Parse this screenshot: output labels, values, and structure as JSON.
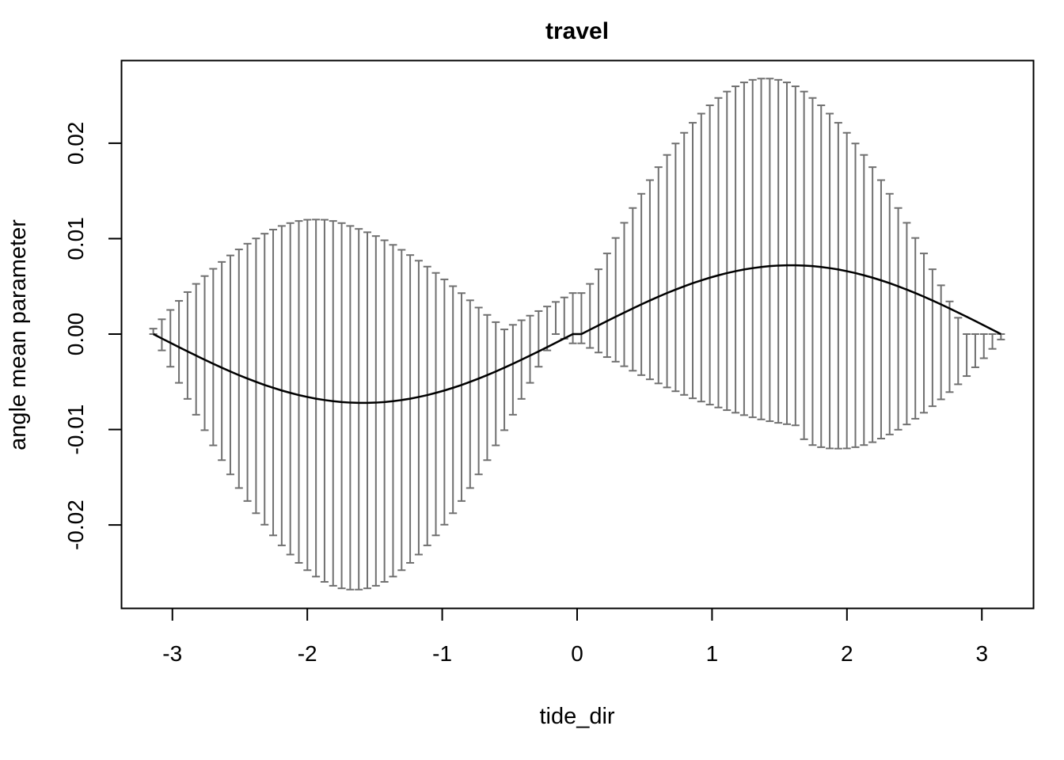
{
  "chart_data": {
    "type": "line",
    "title": "travel",
    "xlabel": "tide_dir",
    "ylabel": "angle mean parameter",
    "xlim": [
      -3.38,
      3.38
    ],
    "ylim": [
      -0.0287,
      0.0287
    ],
    "x_ticks": [
      -3,
      -2,
      -1,
      0,
      1,
      2,
      3
    ],
    "x_tick_labels": [
      "-3",
      "-2",
      "-1",
      "0",
      "1",
      "2",
      "3"
    ],
    "y_ticks": [
      -0.02,
      -0.01,
      0.0,
      0.01,
      0.02
    ],
    "y_tick_labels": [
      "-0.02",
      "-0.01",
      "0.00",
      "0.01",
      "0.02"
    ],
    "grid": false,
    "colors": {
      "line": "#000000",
      "errorbar": "#707070",
      "axes": "#000000"
    },
    "series": [
      {
        "x": [
          -3.1416,
          -3.0782,
          -3.0147,
          -2.9512,
          -2.8877,
          -2.8243,
          -2.7608,
          -2.6973,
          -2.6339,
          -2.5704,
          -2.5069,
          -2.4435,
          -2.38,
          -2.3165,
          -2.2531,
          -2.1896,
          -2.1261,
          -2.0627,
          -1.9992,
          -1.9357,
          -1.8723,
          -1.8088,
          -1.7453,
          -1.6819,
          -1.6184,
          -1.5549,
          -1.4915,
          -1.428,
          -1.3645,
          -1.301,
          -1.2376,
          -1.1741,
          -1.1106,
          -1.0472,
          -0.9837,
          -0.9202,
          -0.8568,
          -0.7933,
          -0.7298,
          -0.6664,
          -0.6029,
          -0.5394,
          -0.476,
          -0.4125,
          -0.349,
          -0.2856,
          -0.2221,
          -0.1586,
          -0.0952,
          -0.0317,
          0.0317,
          0.0952,
          0.1586,
          0.2221,
          0.2856,
          0.349,
          0.4125,
          0.476,
          0.5394,
          0.6029,
          0.6664,
          0.7298,
          0.7933,
          0.8568,
          0.9202,
          0.9837,
          1.0472,
          1.1106,
          1.1741,
          1.2376,
          1.301,
          1.3645,
          1.428,
          1.4915,
          1.5549,
          1.6184,
          1.6819,
          1.7453,
          1.8088,
          1.8723,
          1.9357,
          1.9992,
          2.0627,
          2.1261,
          2.1896,
          2.2531,
          2.3165,
          2.38,
          2.4435,
          2.5069,
          2.5704,
          2.6339,
          2.6973,
          2.7608,
          2.8243,
          2.8877,
          2.9512,
          3.0147,
          3.0782,
          3.1416
        ],
        "y": [
          0.0,
          -0.00046,
          -0.00091,
          -0.00137,
          -0.00181,
          -0.00225,
          -0.00269,
          -0.00311,
          -0.00352,
          -0.00392,
          -0.0043,
          -0.00466,
          -0.005,
          -0.00533,
          -0.00563,
          -0.00591,
          -0.00616,
          -0.00639,
          -0.00659,
          -0.00677,
          -0.00691,
          -0.00703,
          -0.00712,
          -0.00718,
          -0.00721,
          -0.00721,
          -0.00718,
          -0.00712,
          -0.00703,
          -0.00691,
          -0.00677,
          -0.00659,
          -0.00639,
          -0.00616,
          -0.00591,
          -0.00563,
          -0.00533,
          -0.005,
          -0.00466,
          -0.0043,
          -0.00392,
          -0.00352,
          -0.00311,
          -0.00269,
          -0.00225,
          -0.00181,
          -0.00137,
          -0.00091,
          -0.00046,
          0.0,
          0.0,
          0.00046,
          0.00091,
          0.00137,
          0.00181,
          0.00225,
          0.00269,
          0.00311,
          0.00352,
          0.00392,
          0.0043,
          0.00466,
          0.005,
          0.00533,
          0.00563,
          0.00591,
          0.00616,
          0.00639,
          0.00659,
          0.00677,
          0.00691,
          0.00703,
          0.00712,
          0.00718,
          0.00721,
          0.00721,
          0.00718,
          0.00712,
          0.00703,
          0.00691,
          0.00677,
          0.00659,
          0.00639,
          0.00616,
          0.00591,
          0.00563,
          0.00533,
          0.005,
          0.00466,
          0.0043,
          0.00392,
          0.00352,
          0.00311,
          0.00269,
          0.00225,
          0.00181,
          0.00137,
          0.00091,
          0.00046,
          0.0
        ],
        "lower": [
          0.0,
          -0.00171,
          -0.00342,
          -0.00511,
          -0.00679,
          -0.00845,
          -0.01007,
          -0.01166,
          -0.01321,
          -0.0147,
          -0.01613,
          -0.01749,
          -0.01877,
          -0.01997,
          -0.02109,
          -0.02214,
          -0.0231,
          -0.02397,
          -0.02474,
          -0.02541,
          -0.02596,
          -0.02637,
          -0.02664,
          -0.02677,
          -0.02677,
          -0.02664,
          -0.02637,
          -0.02596,
          -0.02541,
          -0.02474,
          -0.02397,
          -0.0231,
          -0.02214,
          -0.02109,
          -0.01997,
          -0.01877,
          -0.01749,
          -0.01613,
          -0.0147,
          -0.01321,
          -0.01166,
          -0.01007,
          -0.00845,
          -0.00679,
          -0.00511,
          -0.00342,
          -0.00171,
          0.0,
          -0.00049,
          -0.00097,
          -0.00097,
          -0.00145,
          -0.00193,
          -0.00241,
          -0.00289,
          -0.00337,
          -0.00384,
          -0.0043,
          -0.00474,
          -0.00517,
          -0.00559,
          -0.00599,
          -0.00637,
          -0.00673,
          -0.00707,
          -0.00739,
          -0.00769,
          -0.00797,
          -0.00824,
          -0.00849,
          -0.00872,
          -0.00894,
          -0.00913,
          -0.0093,
          -0.00944,
          -0.00956,
          -0.01102,
          -0.01163,
          -0.01185,
          -0.01198,
          -0.012,
          -0.01198,
          -0.01185,
          -0.01163,
          -0.01133,
          -0.01095,
          -0.01052,
          -0.01002,
          -0.00947,
          -0.00887,
          -0.00824,
          -0.00756,
          -0.00684,
          -0.00608,
          -0.00526,
          -0.0044,
          -0.00348,
          -0.00253,
          -0.00155,
          -0.00057
        ],
        "upper": [
          0.00057,
          0.00155,
          0.00253,
          0.00348,
          0.0044,
          0.00526,
          0.00608,
          0.00684,
          0.00756,
          0.00824,
          0.00887,
          0.00947,
          0.01002,
          0.01052,
          0.01095,
          0.01133,
          0.01163,
          0.01185,
          0.01198,
          0.012,
          0.01198,
          0.01185,
          0.01163,
          0.01133,
          0.01102,
          0.01067,
          0.01027,
          0.00983,
          0.00935,
          0.00883,
          0.00828,
          0.00769,
          0.00707,
          0.00641,
          0.00573,
          0.00502,
          0.00429,
          0.00354,
          0.00278,
          0.00201,
          0.00125,
          0.00049,
          0.00097,
          0.00145,
          0.00193,
          0.00241,
          0.00289,
          0.00337,
          0.00384,
          0.0043,
          0.0043,
          0.00526,
          0.00679,
          0.00845,
          0.01007,
          0.01166,
          0.01321,
          0.0147,
          0.01613,
          0.01749,
          0.01877,
          0.01997,
          0.02109,
          0.02214,
          0.0231,
          0.02397,
          0.02474,
          0.02541,
          0.02596,
          0.02637,
          0.02664,
          0.02677,
          0.02677,
          0.02664,
          0.02637,
          0.02596,
          0.02541,
          0.02474,
          0.02397,
          0.0231,
          0.02214,
          0.02109,
          0.01997,
          0.01877,
          0.01749,
          0.01613,
          0.0147,
          0.01321,
          0.01166,
          0.01007,
          0.00845,
          0.00679,
          0.00511,
          0.00342,
          0.00171,
          0.0,
          0.0,
          0.0,
          0.0,
          0.0
        ]
      }
    ]
  }
}
